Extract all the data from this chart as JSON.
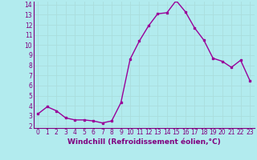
{
  "hours": [
    0,
    1,
    2,
    3,
    4,
    5,
    6,
    7,
    8,
    9,
    10,
    11,
    12,
    13,
    14,
    15,
    16,
    17,
    18,
    19,
    20,
    21,
    22,
    23
  ],
  "values": [
    3.2,
    3.9,
    3.5,
    2.8,
    2.6,
    2.6,
    2.5,
    2.3,
    2.5,
    4.3,
    8.6,
    10.4,
    11.9,
    13.1,
    13.2,
    14.4,
    13.3,
    11.7,
    10.5,
    8.7,
    8.4,
    7.8,
    8.5,
    6.5
  ],
  "line_color": "#990099",
  "marker": "s",
  "marker_size": 2.0,
  "bg_color": "#b2ebee",
  "grid_color": "#aadddd",
  "xlabel": "Windchill (Refroidissement éolien,°C)",
  "xlabel_fontsize": 6.5,
  "xlabel_color": "#800080",
  "tick_color": "#800080",
  "ylim_min": 2,
  "ylim_max": 14,
  "xlim_min": 0,
  "xlim_max": 23,
  "yticks": [
    2,
    3,
    4,
    5,
    6,
    7,
    8,
    9,
    10,
    11,
    12,
    13,
    14
  ],
  "xticks": [
    0,
    1,
    2,
    3,
    4,
    5,
    6,
    7,
    8,
    9,
    10,
    11,
    12,
    13,
    14,
    15,
    16,
    17,
    18,
    19,
    20,
    21,
    22,
    23
  ],
  "tick_fontsize": 5.5,
  "linewidth": 1.0
}
